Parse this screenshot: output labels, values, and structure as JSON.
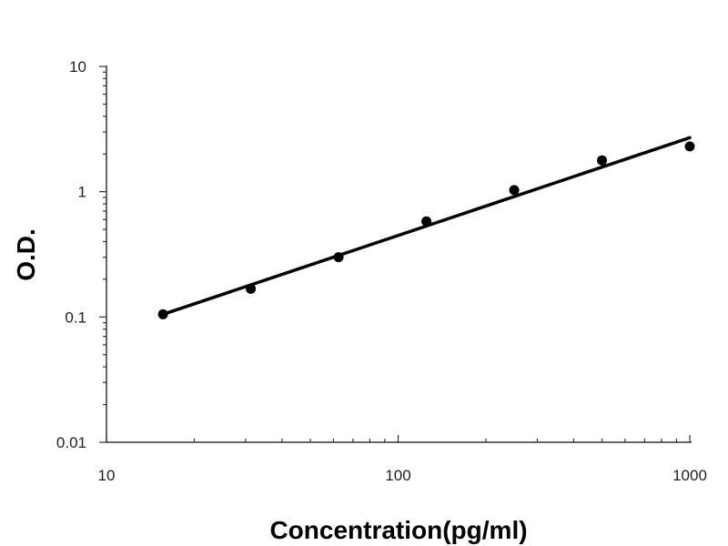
{
  "chart_data": {
    "type": "scatter",
    "title": "",
    "xlabel": "Concentration(pg/ml)",
    "ylabel": "O.D.",
    "x_scale": "log",
    "y_scale": "log",
    "xlim": [
      10,
      1000
    ],
    "ylim": [
      0.01,
      10
    ],
    "x_tick_labels": [
      "10",
      "100",
      "1000"
    ],
    "y_tick_labels": [
      "10",
      "1",
      "0.1",
      "0.01"
    ],
    "grid": false,
    "legend": "none",
    "marker_color": "#000000",
    "line_color": "#000000",
    "series": [
      {
        "x": [
          15.625,
          31.25,
          62.5,
          125,
          250,
          500,
          1000
        ],
        "y": [
          0.105,
          0.168,
          0.3,
          0.58,
          1.03,
          1.78,
          2.3
        ]
      }
    ],
    "fit_line": {
      "x": [
        15.625,
        1000
      ],
      "y": [
        0.105,
        2.7
      ]
    }
  }
}
